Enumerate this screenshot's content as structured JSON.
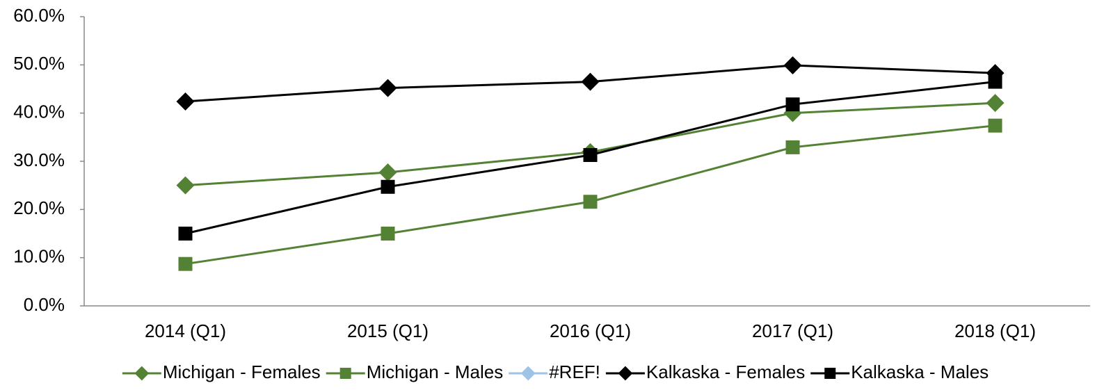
{
  "chart_data": {
    "type": "line",
    "categories": [
      "2014 (Q1)",
      "2015 (Q1)",
      "2016 (Q1)",
      "2017 (Q1)",
      "2018 (Q1)"
    ],
    "series": [
      {
        "name": "Michigan - Females",
        "color": "#548235",
        "marker": "diamond",
        "values": [
          25.0,
          27.7,
          31.9,
          40.0,
          42.1
        ]
      },
      {
        "name": "Michigan - Males",
        "color": "#548235",
        "marker": "square",
        "values": [
          8.7,
          15.0,
          21.6,
          32.9,
          37.4
        ]
      },
      {
        "name": "#REF!",
        "color": "#9dc3e6",
        "marker": "diamond",
        "values": [
          null,
          null,
          null,
          null,
          null
        ]
      },
      {
        "name": "Kalkaska - Females",
        "color": "#000000",
        "marker": "diamond",
        "values": [
          42.4,
          45.2,
          46.5,
          49.9,
          48.3
        ]
      },
      {
        "name": "Kalkaska - Males",
        "color": "#000000",
        "marker": "square",
        "values": [
          15.0,
          24.7,
          31.3,
          41.8,
          46.5
        ]
      }
    ],
    "ylim": [
      0,
      60
    ],
    "yticks": [
      {
        "value": 0,
        "label": "0.0%"
      },
      {
        "value": 10,
        "label": "10.0%"
      },
      {
        "value": 20,
        "label": "20.0%"
      },
      {
        "value": 30,
        "label": "30.0%"
      },
      {
        "value": 40,
        "label": "40.0%"
      },
      {
        "value": 50,
        "label": "50.0%"
      },
      {
        "value": 60,
        "label": "60.0%"
      }
    ],
    "legend": "bottom"
  }
}
